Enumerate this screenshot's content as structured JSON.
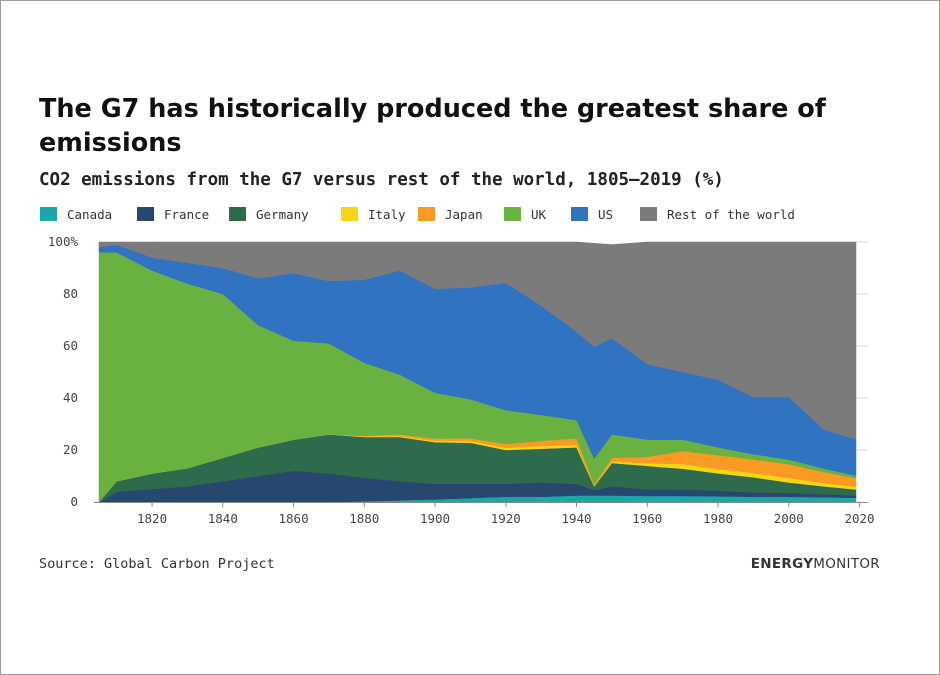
{
  "title": "The G7 has historically produced the greatest share of emissions",
  "subtitle": "CO2 emissions from the G7 versus rest of the world, 1805–2019 (%)",
  "source": "Source: Global Carbon Project",
  "brand": {
    "bold": "ENERGY",
    "regular": "MONITOR"
  },
  "colors": {
    "Canada": "#1aa7a8",
    "France": "#27486e",
    "Germany": "#2e6a4c",
    "Italy": "#f5d611",
    "Japan": "#f99b22",
    "UK": "#6ab23f",
    "US": "#2f73c1",
    "Rest of the world": "#7b7b7b"
  },
  "chart_data": {
    "type": "area",
    "stacked": true,
    "title": "The G7 has historically produced the greatest share of emissions",
    "subtitle": "CO2 emissions from the G7 versus rest of the world, 1805–2019 (%)",
    "xlim": [
      1805,
      2019
    ],
    "ylim": [
      0,
      100
    ],
    "y_ticks": [
      {
        "value": 0,
        "label": "0"
      },
      {
        "value": 20,
        "label": "20"
      },
      {
        "value": 40,
        "label": "40"
      },
      {
        "value": 60,
        "label": "60"
      },
      {
        "value": 80,
        "label": "80"
      },
      {
        "value": 100,
        "label": "100%"
      }
    ],
    "x_ticks": [
      1820,
      1840,
      1860,
      1880,
      1900,
      1920,
      1940,
      1960,
      1980,
      2000,
      2020
    ],
    "grid": "horizontal",
    "legend_position": "top-left",
    "x": [
      1805,
      1810,
      1820,
      1830,
      1840,
      1850,
      1860,
      1870,
      1880,
      1890,
      1900,
      1910,
      1920,
      1930,
      1940,
      1945,
      1950,
      1960,
      1970,
      1980,
      1990,
      2000,
      2010,
      2019
    ],
    "series": [
      {
        "name": "Canada",
        "values": [
          0,
          0,
          0,
          0,
          0,
          0,
          0,
          0,
          0.3,
          0.6,
          1.0,
          1.5,
          2.0,
          2.0,
          2.5,
          2.5,
          2.5,
          2.3,
          2.3,
          2.2,
          2.0,
          2.0,
          1.8,
          1.6
        ]
      },
      {
        "name": "France",
        "values": [
          0,
          4,
          5,
          6,
          8,
          10,
          12,
          11,
          9,
          7.4,
          6.0,
          5.5,
          5.0,
          5.5,
          4.5,
          2.0,
          3.5,
          2.6,
          2.5,
          2.2,
          1.7,
          1.5,
          1.2,
          0.9
        ]
      },
      {
        "name": "Germany",
        "values": [
          0,
          4,
          6,
          7,
          9,
          11,
          12,
          15,
          15.7,
          17,
          16,
          15.8,
          13,
          13,
          14,
          1.5,
          9.0,
          9.0,
          8.0,
          6.6,
          5.8,
          4.0,
          3.0,
          2.3
        ]
      },
      {
        "name": "Italy",
        "values": [
          0,
          0,
          0,
          0,
          0,
          0,
          0,
          0,
          0.2,
          0.4,
          0.5,
          0.7,
          0.8,
          1.0,
          1.0,
          0.2,
          0.6,
          1.0,
          1.8,
          1.7,
          1.7,
          1.7,
          1.3,
          1.0
        ]
      },
      {
        "name": "Japan",
        "values": [
          0,
          0,
          0,
          0,
          0,
          0,
          0,
          0,
          0.3,
          0.6,
          0.9,
          1.0,
          1.5,
          2.0,
          2.5,
          0.5,
          1.4,
          2.5,
          5.0,
          5.3,
          5.2,
          5.3,
          4.2,
          3.3
        ]
      },
      {
        "name": "UK",
        "values": [
          96,
          88,
          78,
          71,
          63,
          47,
          38,
          35,
          28,
          23,
          17.6,
          15,
          13,
          10,
          7,
          10,
          9.0,
          6.6,
          4.4,
          3.0,
          2.0,
          1.8,
          1.3,
          1.0
        ]
      },
      {
        "name": "US",
        "values": [
          2,
          3,
          5,
          8,
          10,
          18,
          26,
          24,
          32,
          40,
          40,
          43,
          49,
          42,
          34,
          43,
          37,
          29,
          26,
          26,
          22,
          24,
          15,
          14
        ]
      },
      {
        "name": "Rest of the world",
        "values": [
          2,
          1,
          6,
          8,
          10,
          14,
          12,
          15,
          14.5,
          11,
          18,
          17.5,
          15.7,
          24.5,
          34.5,
          39.8,
          36.0,
          47.0,
          50.0,
          53.0,
          59.6,
          59.7,
          72.2,
          75.9
        ]
      }
    ]
  }
}
